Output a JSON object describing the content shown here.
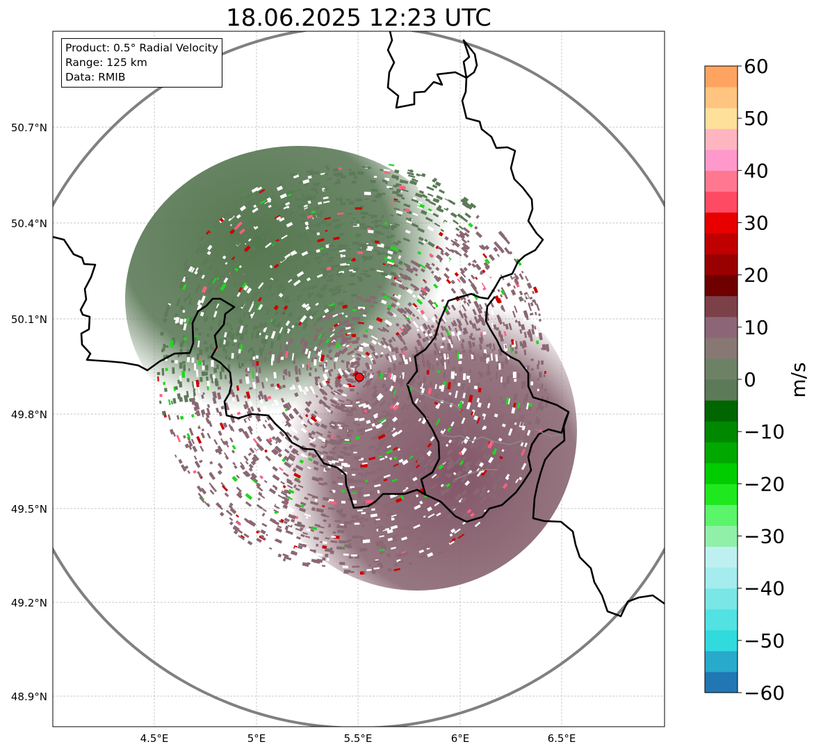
{
  "title": "18.06.2025 12:23 UTC",
  "info": {
    "product": "Product: 0.5° Radial Velocity",
    "range": "Range: 125 km",
    "source": "Data: RMIB"
  },
  "lat_ticks": [
    "50.7°N",
    "50.4°N",
    "50.1°N",
    "49.8°N",
    "49.5°N",
    "49.2°N",
    "48.9°N"
  ],
  "lon_ticks": [
    "4.5°E",
    "5°E",
    "5.5°E",
    "6°E",
    "6.5°E"
  ],
  "colorbar": {
    "unit": "m/s",
    "ticks": [
      "60",
      "50",
      "40",
      "30",
      "20",
      "10",
      "0",
      "−10",
      "−20",
      "−30",
      "−40",
      "−50",
      "−60"
    ],
    "min": -60,
    "max": 60,
    "colors": [
      "#2077b4",
      "#27aacc",
      "#30dadd",
      "#52e2e2",
      "#7ae6e6",
      "#a4eced",
      "#bff0f1",
      "#90f0a8",
      "#5af56a",
      "#1fe81f",
      "#00cc00",
      "#00a800",
      "#008800",
      "#006600",
      "#5c7a58",
      "#6d8264",
      "#887874",
      "#8c6676",
      "#7c4048",
      "#6e0000",
      "#990000",
      "#c00000",
      "#e80000",
      "#ff4a63",
      "#ff7890",
      "#ff99cc",
      "#ffb5c0",
      "#ffe09a",
      "#ffc47f",
      "#ffa460"
    ]
  },
  "radar": {
    "site": "radar-site",
    "colors": {
      "approaching": "#5c7a58",
      "receding": "#8a6873",
      "marker": "#e8141a",
      "range_ring": "#808080",
      "border": "#000000"
    }
  }
}
